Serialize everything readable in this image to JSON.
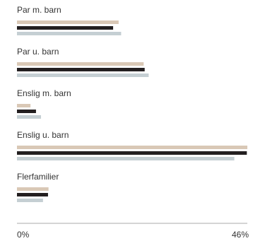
{
  "chart_data": {
    "type": "bar",
    "orientation": "horizontal",
    "categories": [
      "Par m. barn",
      "Par u. barn",
      "Enslig m. barn",
      "Enslig u. barn",
      "Flerfamilier"
    ],
    "series": [
      {
        "values": [
          20.3,
          25.3,
          2.7,
          46.0,
          6.3
        ],
        "color": "#d9c8b6"
      },
      {
        "values": [
          19.2,
          25.5,
          3.8,
          45.9,
          6.2
        ],
        "color": "#231f20"
      },
      {
        "values": [
          20.8,
          26.3,
          4.8,
          43.4,
          5.2
        ],
        "color": "#c5cfd3"
      }
    ],
    "xlim": [
      0,
      46
    ],
    "xtick_labels": [
      "0%",
      "46%"
    ],
    "grid": false,
    "legend": "none",
    "colors": {
      "axis": "#aaaaaa",
      "text": "#333333"
    }
  }
}
